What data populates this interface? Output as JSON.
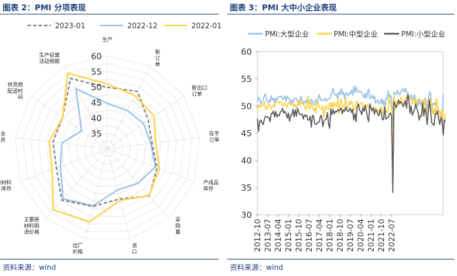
{
  "left_panel": {
    "title": "图表 2：PMI 分项表现",
    "source": "资料来源：wind"
  },
  "right_panel": {
    "title": "图表 3：PMI 大中小企业表现",
    "source": "资料来源：wind"
  },
  "colors": {
    "title": "#1e3f7a",
    "rule": "#2b4f86",
    "gray": "#7f7f7f",
    "blue": "#9dc3e6",
    "yellow": "#ffd24a",
    "dark": "#595959",
    "grid": "#d9d9d9"
  },
  "chart_data": [
    {
      "type": "radar",
      "legend_position": "top",
      "categories": [
        "生产",
        "新订单",
        "新出口订单",
        "在手订单",
        "产成品库存",
        "采购量",
        "进口",
        "出厂价格",
        "主要原材料购进价格",
        "原材料库存",
        "从业人员",
        "供货商配送时间",
        "生产经营活动预期"
      ],
      "radial_ticks": [
        35,
        40,
        45,
        50,
        55,
        60
      ],
      "rlim": [
        30,
        60
      ],
      "series": [
        {
          "name": "2023-01",
          "style": "dashed",
          "color": "#7f7f7f",
          "values": [
            49.8,
            50.9,
            46.1,
            44.5,
            47.2,
            50.4,
            46.7,
            49.2,
            52.2,
            47.6,
            47.7,
            47.6,
            55.6
          ]
        },
        {
          "name": "2022-12",
          "style": "solid",
          "color": "#9dc3e6",
          "values": [
            44.6,
            43.9,
            44.2,
            44.1,
            46.6,
            44.9,
            43.7,
            49.0,
            51.6,
            46.2,
            44.8,
            40.1,
            51.9
          ]
        },
        {
          "name": "2022-01",
          "style": "solid",
          "color": "#ffd24a",
          "values": [
            50.9,
            49.3,
            48.4,
            45.7,
            48.0,
            50.2,
            47.2,
            54.3,
            56.4,
            49.1,
            48.9,
            47.6,
            57.5
          ]
        }
      ]
    },
    {
      "type": "line",
      "legend_position": "top",
      "x_start": "2012-10",
      "x_step_months": 1,
      "x_tick_labels": [
        "2012-10",
        "2013-07",
        "2014-04",
        "2015-01",
        "2015-10",
        "2016-07",
        "2017-04",
        "2018-01",
        "2018-10",
        "2019-07",
        "2020-04",
        "2021-01",
        "2021-10",
        "2022-07"
      ],
      "ylim": [
        30,
        60
      ],
      "y_ticks": [
        30,
        35,
        40,
        45,
        50,
        55,
        60
      ],
      "series": [
        {
          "name": "PMI:大型企业",
          "color": "#9dc3e6",
          "values": [
            50.7,
            51.6,
            51.2,
            50.3,
            50.8,
            51.1,
            51.9,
            52.2,
            51.1,
            50.7,
            51.0,
            50.7,
            51.9,
            51.1,
            51.4,
            50.4,
            51.5,
            51.1,
            51.6,
            51.8,
            51.7,
            51.8,
            51.2,
            51.3,
            51.9,
            50.9,
            51.8,
            51.4,
            51.3,
            50.2,
            51.1,
            50.7,
            51.4,
            51.5,
            51.4,
            50.8,
            50.2,
            51.1,
            51.8,
            51.2,
            50.3,
            50.6,
            51.0,
            50.4,
            51.8,
            50.9,
            50.5,
            51.2,
            50.9,
            50.3,
            50.2,
            51.2,
            50.4,
            51.3,
            52.1,
            51.1,
            51.1,
            51.0,
            51.1,
            51.4,
            50.9,
            51.2,
            51.3,
            51.3,
            52.0,
            52.6,
            53.2,
            52.3,
            52.0,
            52.2,
            51.2,
            52.6,
            52.1,
            53.2,
            52.1,
            52.6,
            51.3,
            52.4,
            52.3,
            51.9,
            52.4,
            52.3,
            52.9,
            52.0,
            53.6,
            52.4,
            53.6,
            52.7,
            52.5,
            52.8,
            52.7,
            52.4,
            51.9,
            51.5,
            52.3,
            51.4,
            52.6,
            53.1,
            51.4,
            51.5,
            52.0,
            51.3,
            51.8,
            50.5,
            50.9,
            51.1,
            50.4,
            50.5,
            51.4,
            50.3,
            51.1,
            49.5,
            51.4,
            51.2,
            52.8,
            51.5,
            52.0,
            51.3,
            46.3,
            52.5,
            52.3,
            52.1,
            52.9,
            52.3,
            52.0,
            52.7,
            53.0,
            53.1,
            52.5,
            53.3,
            52.6,
            52.5,
            52.0,
            51.3,
            52.1,
            51.4,
            51.2,
            52.1,
            50.3,
            50.9,
            50.1,
            51.3,
            50.2,
            50.8,
            51.1,
            50.1,
            51.5,
            51.1,
            49.0,
            51.2,
            52.6,
            52.4,
            49.1,
            50.5,
            50.3,
            50.6,
            48.4,
            49.3,
            49.0,
            49.1,
            48.1,
            47.1,
            52.2
          ]
        },
        {
          "name": "PMI:中型企业",
          "color": "#ffd24a",
          "values": [
            49.2,
            50.2,
            49.8,
            50.1,
            49.9,
            50.2,
            50.8,
            49.6,
            49.3,
            50.0,
            50.5,
            50.0,
            49.4,
            49.8,
            50.2,
            49.8,
            50.7,
            50.9,
            50.8,
            50.5,
            50.7,
            50.8,
            50.0,
            50.2,
            50.6,
            50.1,
            49.8,
            50.6,
            50.5,
            50.4,
            50.2,
            50.6,
            49.8,
            50.3,
            49.7,
            50.2,
            51.1,
            50.1,
            50.9,
            50.4,
            50.3,
            50.1,
            49.3,
            49.8,
            51.7,
            49.6,
            49.4,
            50.6,
            50.0,
            49.1,
            49.6,
            48.7,
            50.8,
            50.5,
            49.7,
            49.4,
            49.4,
            50.0,
            48.0,
            49.4,
            50.1,
            49.4,
            49.3,
            50.6,
            49.9,
            50.7,
            49.4,
            50.7,
            50.1,
            50.0,
            51.2,
            48.6,
            50.7,
            51.3,
            50.1,
            49.8,
            50.3,
            51.4,
            49.3,
            49.6,
            50.9,
            50.3,
            50.9,
            50.2,
            49.3,
            49.2,
            50.9,
            50.7,
            50.3,
            49.9,
            50.5,
            50.6,
            49.9,
            49.9,
            50.3,
            50.1,
            50.2,
            49.6,
            50.2,
            49.4,
            49.4,
            49.2,
            49.2,
            49.8,
            48.9,
            49.2,
            48.4,
            49.4,
            49.9,
            49.0,
            48.6,
            49.9,
            49.0,
            48.8,
            49.3,
            51.5,
            50.7,
            49.1,
            36.3,
            52.0,
            49.3,
            50.8,
            50.8,
            50.2,
            50.7,
            51.6,
            51.1,
            50.6,
            50.1,
            51.5,
            51.2,
            52.0,
            51.5,
            51.4,
            51.6,
            50.3,
            51.1,
            51.2,
            49.8,
            51.2,
            51.0,
            50.8,
            51.1,
            50.7,
            49.3,
            50.2,
            51.5,
            48.9,
            48.5,
            49.9,
            51.4,
            51.0,
            50.3,
            48.6,
            49.4,
            48.0,
            51.4,
            50.2,
            48.8,
            48.9,
            47.6,
            49.5,
            47.6,
            47.4,
            48.6
          ]
        },
        {
          "name": "PMI:小型企业",
          "color": "#595959",
          "values": [
            47.7,
            45.3,
            47.2,
            47.4,
            46.9,
            46.6,
            47.5,
            48.1,
            48.0,
            48.0,
            47.8,
            47.1,
            48.6,
            48.6,
            49.1,
            48.0,
            49.0,
            48.0,
            48.4,
            48.2,
            48.9,
            49.0,
            49.6,
            48.7,
            49.0,
            48.6,
            47.8,
            48.7,
            47.2,
            48.3,
            48.3,
            49.4,
            48.0,
            49.3,
            48.1,
            49.6,
            48.9,
            48.4,
            48.4,
            48.5,
            47.6,
            48.4,
            48.1,
            48.3,
            47.4,
            47.4,
            48.1,
            46.1,
            48.3,
            48.1,
            46.8,
            46.6,
            46.8,
            47.0,
            47.1,
            48.2,
            48.2,
            46.2,
            47.2,
            47.5,
            47.6,
            48.8,
            46.8,
            45.9,
            49.5,
            48.4,
            49.3,
            48.6,
            49.0,
            48.9,
            49.3,
            49.1,
            49.2,
            49.7,
            48.6,
            49.3,
            49.0,
            49.8,
            49.2,
            49.0,
            49.2,
            49.6,
            48.8,
            49.4,
            47.4,
            48.6,
            47.1,
            49.9,
            50.4,
            49.3,
            49.0,
            48.4,
            49.7,
            49.0,
            50.1,
            49.1,
            47.8,
            47.1,
            50.4,
            49.7,
            49.1,
            49.7,
            48.5,
            49.3,
            49.2,
            48.4,
            48.2,
            49.4,
            48.7,
            47.5,
            47.5,
            49.8,
            47.6,
            47.8,
            47.9,
            48.6,
            48.7,
            48.0,
            34.1,
            50.8,
            50.3,
            49.7,
            50.2,
            51.1,
            50.4,
            50.8,
            50.4,
            49.9,
            50.2,
            51.0,
            49.6,
            52.1,
            51.3,
            48.7,
            50.0,
            48.3,
            48.9,
            49.3,
            50.4,
            49.6,
            48.9,
            47.4,
            48.2,
            48.1,
            50.5,
            48.2,
            49.6,
            48.5,
            46.6,
            49.2,
            51.1,
            48.9,
            46.9,
            46.7,
            46.4,
            48.5,
            48.6,
            49.0,
            47.7,
            46.6,
            47.9,
            47.3,
            44.7,
            47.4,
            47.2
          ]
        }
      ]
    }
  ]
}
